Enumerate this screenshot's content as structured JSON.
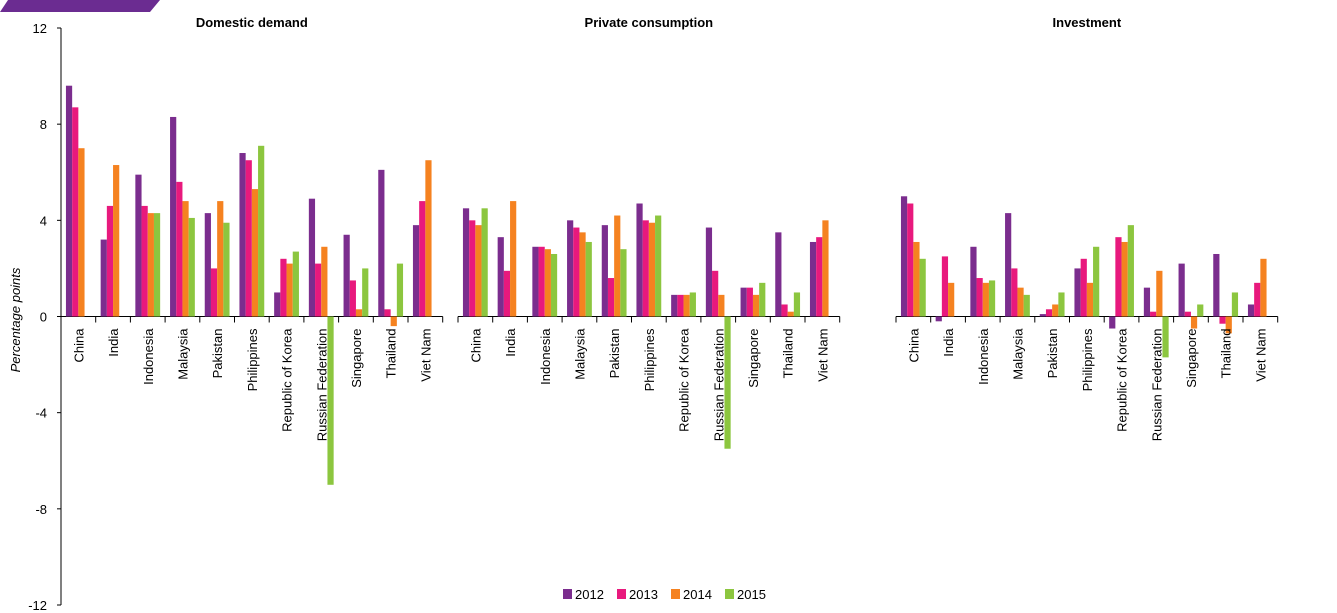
{
  "chart_data": {
    "type": "bar",
    "ylabel": "Percentage points",
    "ylim": [
      -12,
      12
    ],
    "yticks": [
      12,
      8,
      4,
      0,
      -4,
      -8,
      -12
    ],
    "grid": false,
    "legend_position": "bottom-center",
    "series_colors": [
      "#7B2D8E",
      "#E8197D",
      "#F58220",
      "#8CC63F"
    ],
    "series": [
      {
        "name": "2012"
      },
      {
        "name": "2013"
      },
      {
        "name": "2014"
      },
      {
        "name": "2015"
      }
    ],
    "categories": [
      "China",
      "India",
      "Indonesia",
      "Malaysia",
      "Pakistan",
      "Philippines",
      "Republic of Korea",
      "Russian Federation",
      "Singapore",
      "Thailand",
      "Viet Nam"
    ],
    "panels": [
      {
        "title": "Domestic demand",
        "values": [
          [
            9.6,
            8.7,
            7.0,
            0
          ],
          [
            3.2,
            4.6,
            6.3,
            0
          ],
          [
            5.9,
            4.6,
            4.3,
            4.3
          ],
          [
            8.3,
            5.6,
            4.8,
            4.1
          ],
          [
            4.3,
            2.0,
            4.8,
            3.9
          ],
          [
            6.8,
            6.5,
            5.3,
            7.1
          ],
          [
            1.0,
            2.4,
            2.2,
            2.7
          ],
          [
            4.9,
            2.2,
            2.9,
            -7.0
          ],
          [
            3.4,
            1.5,
            0.3,
            2.0
          ],
          [
            6.1,
            0.3,
            -0.4,
            2.2
          ],
          [
            3.8,
            4.8,
            6.5,
            0
          ]
        ]
      },
      {
        "title": "Private consumption",
        "values": [
          [
            4.5,
            4.0,
            3.8,
            4.5
          ],
          [
            3.3,
            1.9,
            4.8,
            0
          ],
          [
            2.9,
            2.9,
            2.8,
            2.6
          ],
          [
            4.0,
            3.7,
            3.5,
            3.1
          ],
          [
            3.8,
            1.6,
            4.2,
            2.8
          ],
          [
            4.7,
            4.0,
            3.9,
            4.2
          ],
          [
            0.9,
            0.9,
            0.9,
            1.0
          ],
          [
            3.7,
            1.9,
            0.9,
            -5.5
          ],
          [
            1.2,
            1.2,
            0.9,
            1.4
          ],
          [
            3.5,
            0.5,
            0.2,
            1.0
          ],
          [
            3.1,
            3.3,
            4.0,
            0
          ]
        ]
      },
      {
        "title": "Investment",
        "values": [
          [
            5.0,
            4.7,
            3.1,
            2.4
          ],
          [
            -0.2,
            2.5,
            1.4,
            0
          ],
          [
            2.9,
            1.6,
            1.4,
            1.5
          ],
          [
            4.3,
            2.0,
            1.2,
            0.9
          ],
          [
            0.1,
            0.3,
            0.5,
            1.0
          ],
          [
            2.0,
            2.4,
            1.4,
            2.9
          ],
          [
            -0.5,
            3.3,
            3.1,
            3.8
          ],
          [
            1.2,
            0.2,
            1.9,
            -1.7
          ],
          [
            2.2,
            0.2,
            -0.5,
            0.5
          ],
          [
            2.6,
            -0.3,
            -0.7,
            1.0
          ],
          [
            0.5,
            1.4,
            2.4,
            0
          ]
        ]
      }
    ]
  }
}
